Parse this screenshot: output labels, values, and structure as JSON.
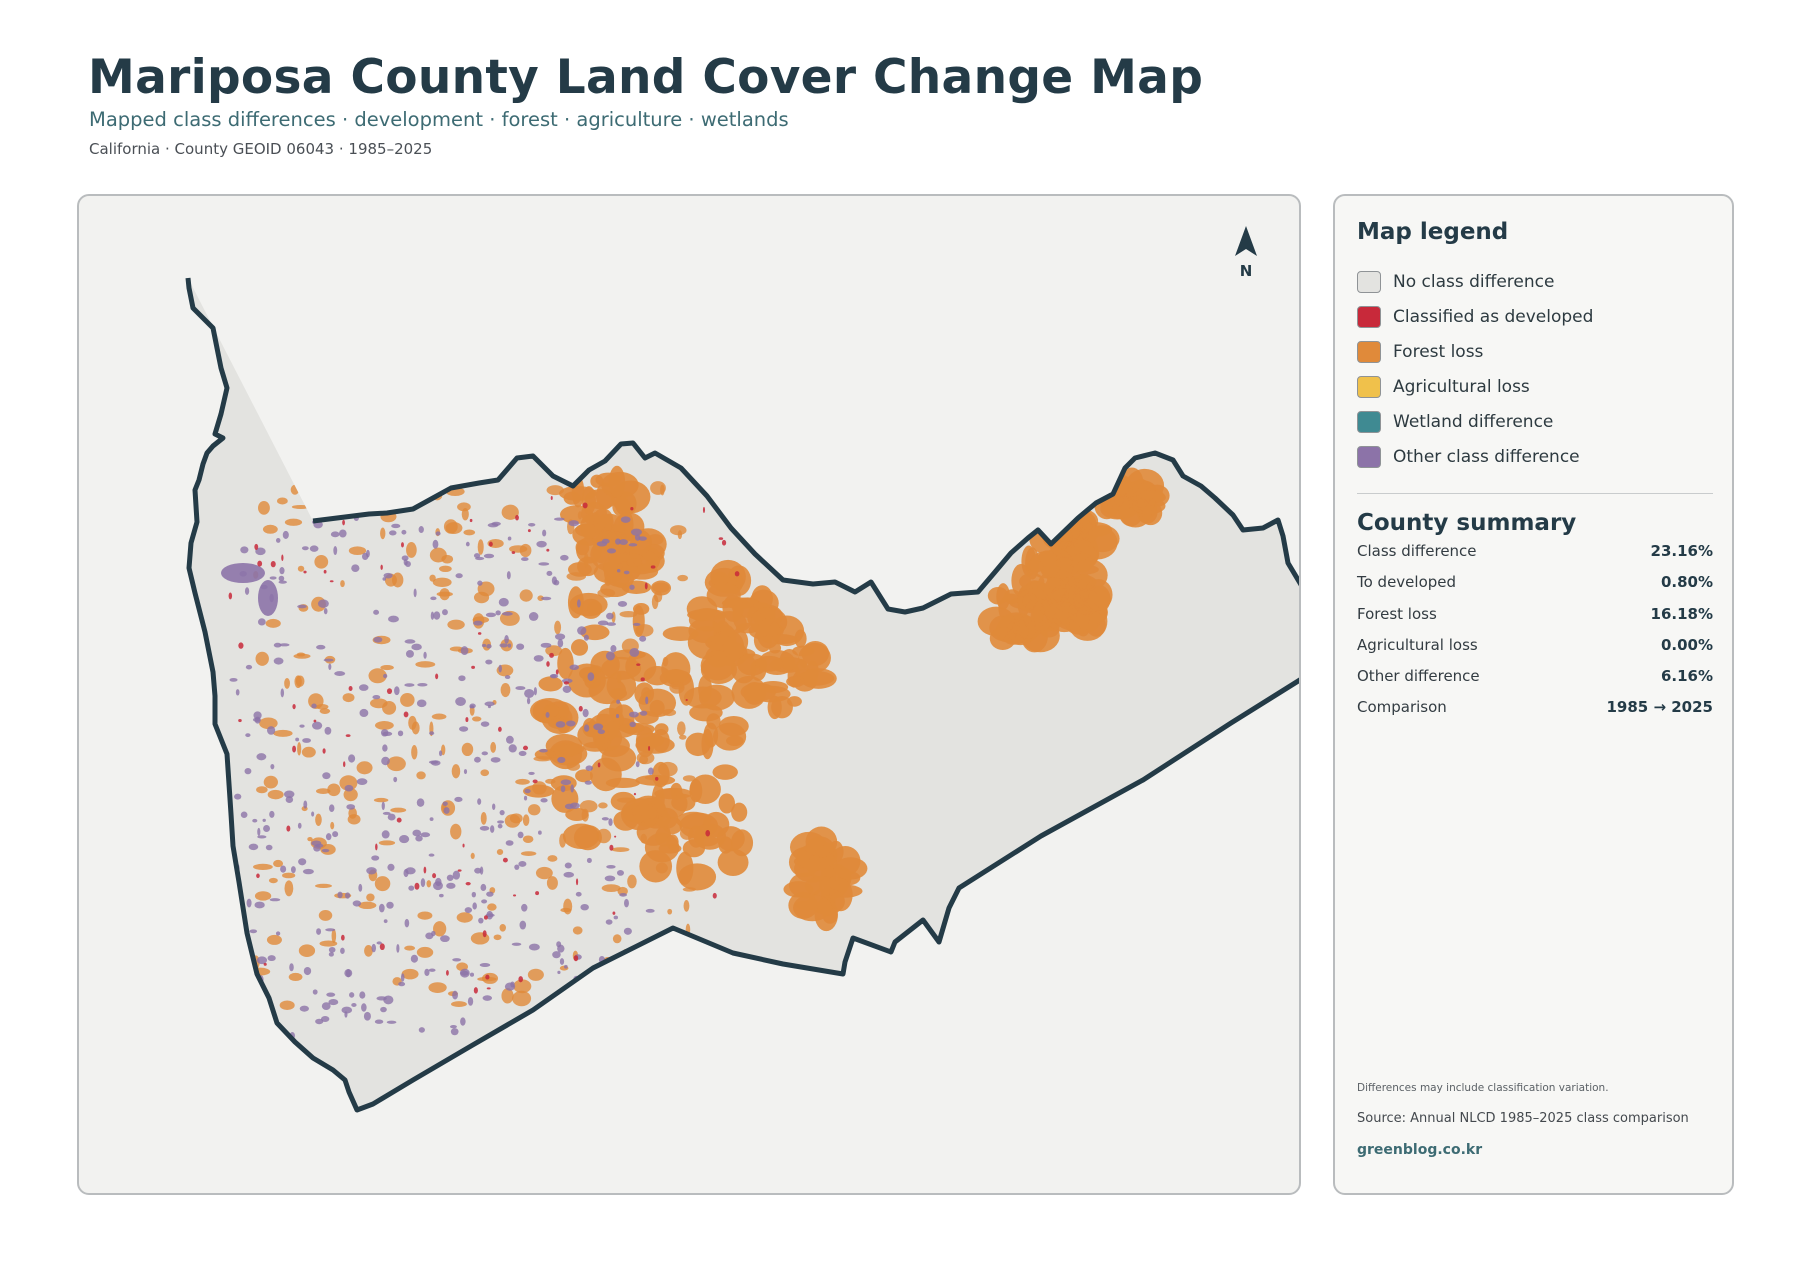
{
  "header": {
    "title": "Mariposa County Land Cover Change Map",
    "subtitle": "Mapped class differences · development · forest · agriculture · wetlands",
    "meta": "California · County GEOID 06043 · 1985–2025"
  },
  "map": {
    "north_label": "N"
  },
  "legend": {
    "title": "Map legend",
    "items": [
      {
        "label": "No class difference",
        "color": "#e3e3e0"
      },
      {
        "label": "Classified as developed",
        "color": "#c8293a"
      },
      {
        "label": "Forest loss",
        "color": "#e08a3a"
      },
      {
        "label": "Agricultural loss",
        "color": "#f0c14b"
      },
      {
        "label": "Wetland difference",
        "color": "#3f8a92"
      },
      {
        "label": "Other class difference",
        "color": "#8c73a8"
      }
    ]
  },
  "summary": {
    "title": "County summary",
    "rows": [
      {
        "label": "Class difference",
        "value": "23.16%"
      },
      {
        "label": "To developed",
        "value": "0.80%"
      },
      {
        "label": "Forest loss",
        "value": "16.18%"
      },
      {
        "label": "Agricultural loss",
        "value": "0.00%"
      },
      {
        "label": "Other difference",
        "value": "6.16%"
      },
      {
        "label": "Comparison",
        "value": "1985 → 2025"
      }
    ]
  },
  "footer": {
    "note": "Differences may include classification variation.",
    "source": "Source: Annual NLCD 1985–2025 class comparison",
    "site": "greenblog.co.kr"
  },
  "colors": {
    "outline": "#243b47",
    "panel_bg": "#f2f2f0",
    "accent": "#3d6b73"
  }
}
